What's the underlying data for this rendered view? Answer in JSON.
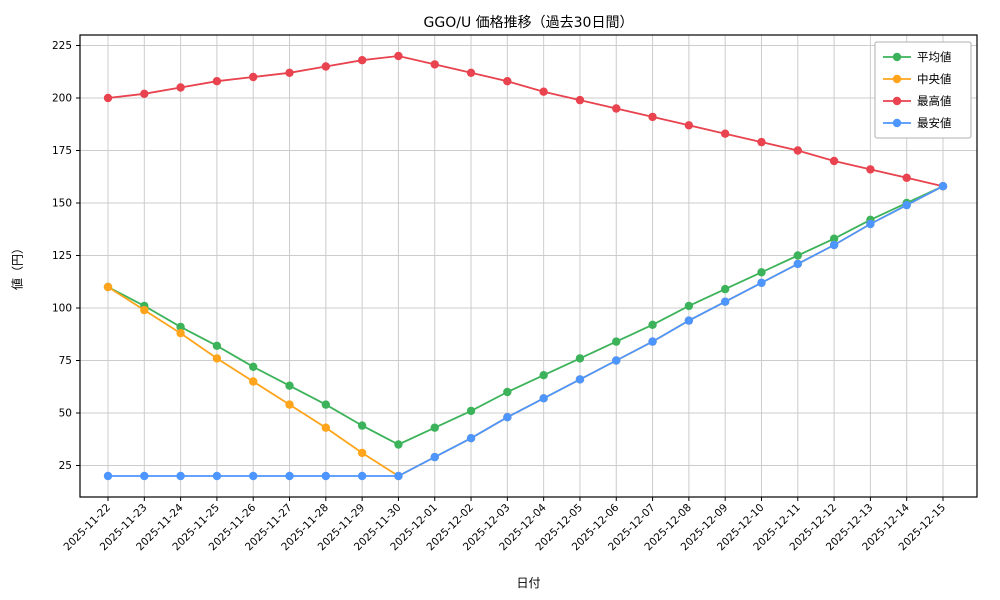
{
  "chart_data": {
    "type": "line",
    "title": "GGO/U 価格推移（過去30日間）",
    "xlabel": "日付",
    "ylabel": "値（円）",
    "x": [
      "2025-11-22",
      "2025-11-23",
      "2025-11-24",
      "2025-11-25",
      "2025-11-26",
      "2025-11-27",
      "2025-11-28",
      "2025-11-29",
      "2025-11-30",
      "2025-12-01",
      "2025-12-02",
      "2025-12-03",
      "2025-12-04",
      "2025-12-05",
      "2025-12-06",
      "2025-12-07",
      "2025-12-08",
      "2025-12-09",
      "2025-12-10",
      "2025-12-11",
      "2025-12-12",
      "2025-12-13",
      "2025-12-14",
      "2025-12-15"
    ],
    "yticks": [
      25,
      50,
      75,
      100,
      125,
      150,
      175,
      200,
      225
    ],
    "ylim": [
      10,
      230
    ],
    "grid": true,
    "legend_position": "top-right",
    "colors": {
      "grid": "#cccccc",
      "axis": "#000000",
      "legend_border": "#b0b0b0",
      "background": "#ffffff"
    },
    "series": [
      {
        "name": "平均値",
        "color": "#3cb35a",
        "values": [
          110,
          101,
          91,
          82,
          72,
          63,
          54,
          44,
          35,
          43,
          51,
          60,
          68,
          76,
          84,
          92,
          101,
          109,
          117,
          125,
          133,
          142,
          150,
          158
        ]
      },
      {
        "name": "中央値",
        "color": "#ffa41b",
        "values": [
          110,
          99,
          88,
          76,
          65,
          54,
          43,
          31,
          20,
          29,
          38,
          48,
          57,
          66,
          75,
          84,
          94,
          103,
          112,
          121,
          130,
          140,
          149,
          158
        ]
      },
      {
        "name": "最高値",
        "color": "#e8434e",
        "values": [
          200,
          202,
          205,
          208,
          210,
          212,
          215,
          218,
          220,
          216,
          212,
          208,
          203,
          199,
          195,
          191,
          187,
          183,
          179,
          175,
          170,
          166,
          162,
          158
        ]
      },
      {
        "name": "最安値",
        "color": "#4d96ff",
        "values": [
          20,
          20,
          20,
          20,
          20,
          20,
          20,
          20,
          20,
          29,
          38,
          48,
          57,
          66,
          75,
          84,
          94,
          103,
          112,
          121,
          130,
          140,
          149,
          158
        ]
      }
    ]
  }
}
